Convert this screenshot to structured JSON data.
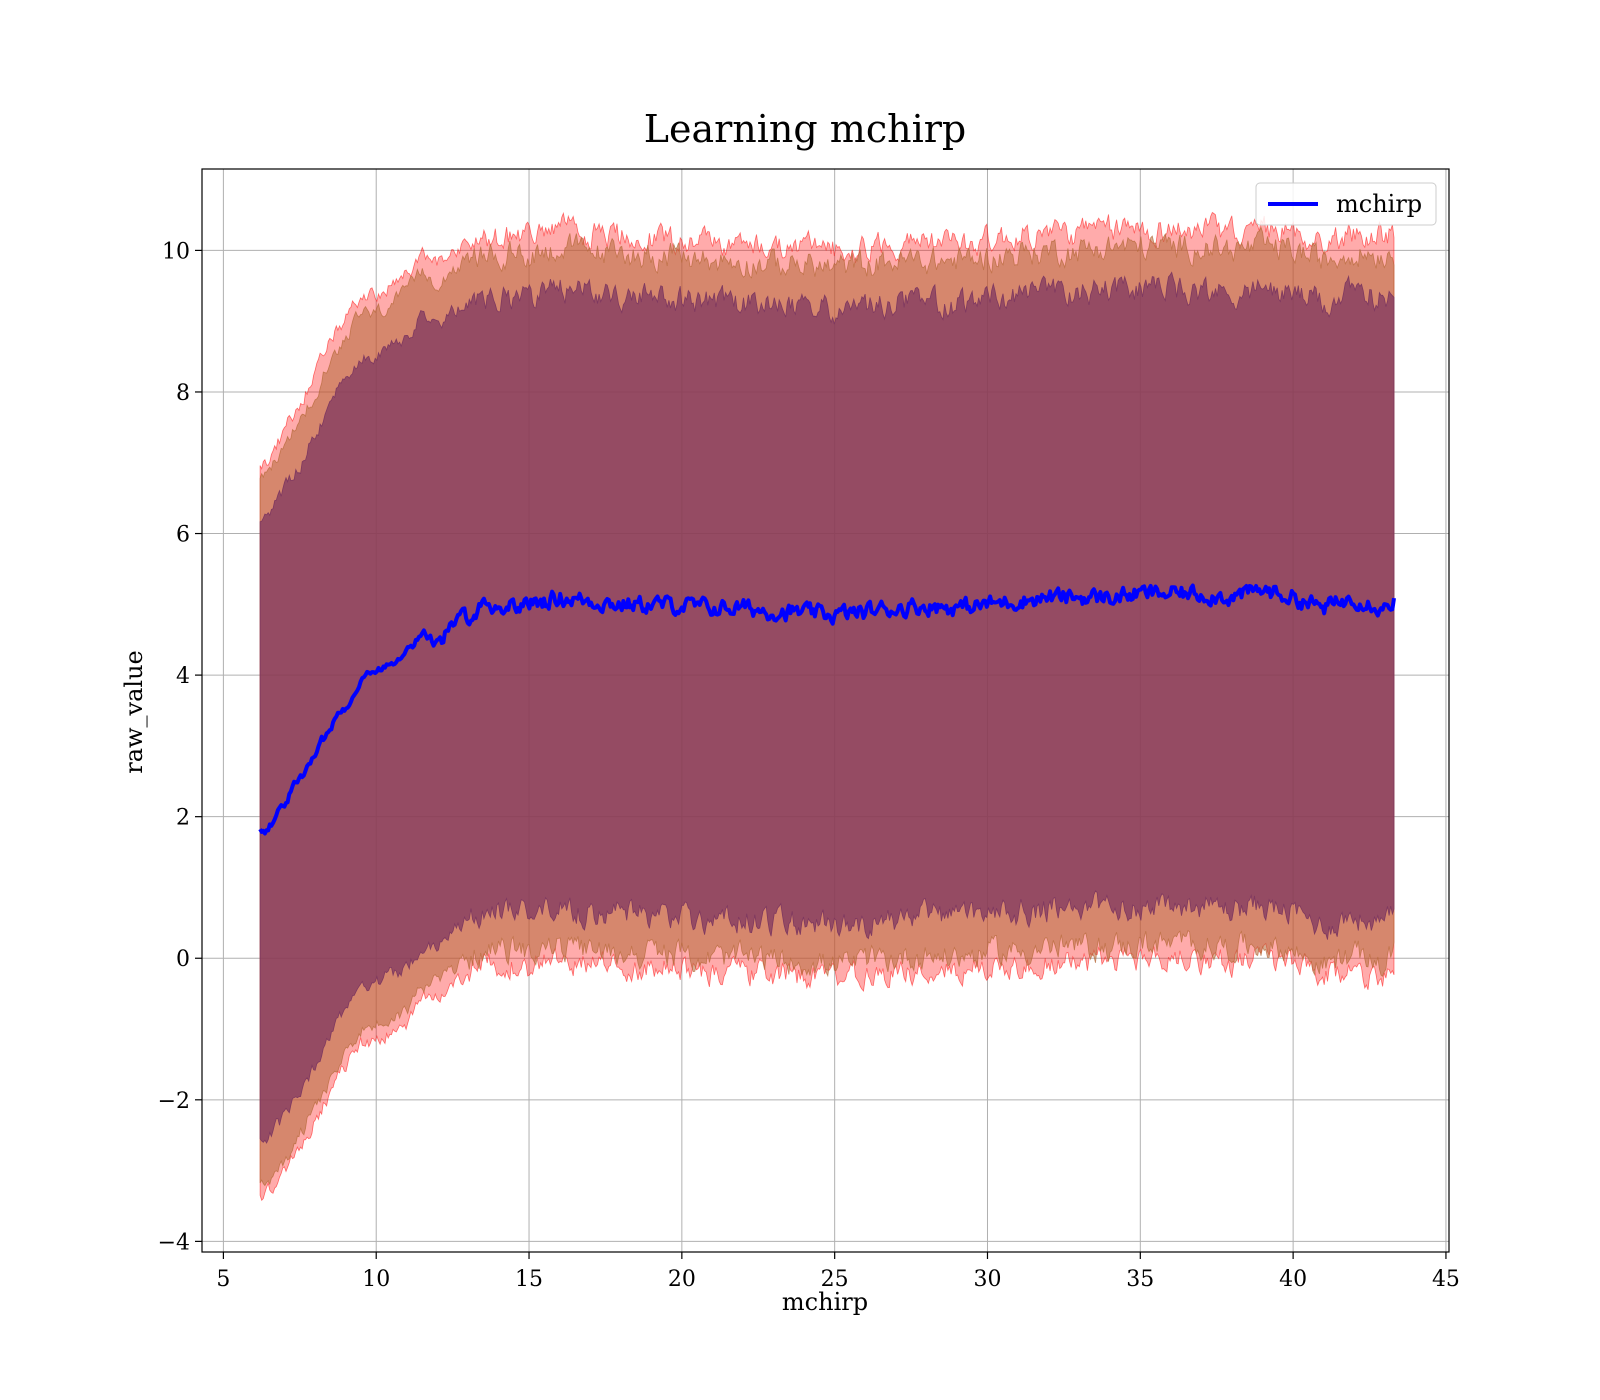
{
  "chart_data": {
    "type": "line",
    "title": "Learning mchirp",
    "xlabel": "mchirp",
    "ylabel": "raw_value",
    "xlim": [
      4.3,
      45.1
    ],
    "ylim": [
      -4.15,
      11.15
    ],
    "xticks": [
      5,
      10,
      15,
      20,
      25,
      30,
      35,
      40,
      45
    ],
    "yticks": [
      -4,
      -2,
      0,
      2,
      4,
      6,
      8,
      10
    ],
    "xtick_labels": [
      "5",
      "10",
      "15",
      "20",
      "25",
      "30",
      "35",
      "40",
      "45"
    ],
    "ytick_labels": [
      "−4",
      "−2",
      "0",
      "2",
      "4",
      "6",
      "8",
      "10"
    ],
    "grid": true,
    "legend": {
      "position": "upper right",
      "entries": [
        "mchirp"
      ]
    },
    "x_range": [
      6.2,
      43.3
    ],
    "series": [
      {
        "name": "mchirp",
        "color": "#0000ff",
        "x": [
          6.2,
          6.5,
          7,
          7.5,
          8,
          8.5,
          9,
          9.5,
          10,
          10.5,
          11,
          11.5,
          12,
          12.5,
          13,
          13.5,
          14,
          14.5,
          15,
          15.5,
          16,
          17,
          18,
          19,
          20,
          21,
          22,
          23,
          24,
          25,
          26,
          27,
          28,
          29,
          30,
          31,
          32,
          33,
          34,
          35,
          36,
          37,
          38,
          39,
          40,
          41,
          42,
          43,
          43.3
        ],
        "mean": [
          1.78,
          1.85,
          2.2,
          2.55,
          2.85,
          3.3,
          3.55,
          3.95,
          4.05,
          4.2,
          4.35,
          4.6,
          4.45,
          4.7,
          4.85,
          5.0,
          4.95,
          5.0,
          5.0,
          5.05,
          5.1,
          5.05,
          5.0,
          5.0,
          4.98,
          4.95,
          4.95,
          4.9,
          4.88,
          4.85,
          4.9,
          4.95,
          4.98,
          4.95,
          5.0,
          5.05,
          5.1,
          5.1,
          5.1,
          5.15,
          5.15,
          5.15,
          5.1,
          5.2,
          5.1,
          4.95,
          5.1,
          4.95,
          5.08
        ]
      }
    ],
    "bands": [
      {
        "name": "outer",
        "color": "#ff0000",
        "opacity": 0.33,
        "x": [
          6.2,
          6.5,
          7,
          7.5,
          8,
          8.5,
          9,
          9.5,
          10,
          10.5,
          11,
          11.5,
          12,
          12.5,
          13,
          13.5,
          14,
          14.5,
          15,
          15.5,
          16,
          17,
          18,
          19,
          20,
          21,
          22,
          23,
          24,
          25,
          26,
          27,
          28,
          29,
          30,
          31,
          32,
          33,
          34,
          35,
          36,
          37,
          38,
          39,
          40,
          41,
          42,
          43,
          43.3
        ],
        "upper": [
          6.92,
          7.05,
          7.45,
          7.85,
          8.25,
          8.7,
          9.05,
          9.35,
          9.35,
          9.5,
          9.65,
          9.95,
          9.8,
          10.0,
          10.1,
          10.2,
          10.15,
          10.2,
          10.2,
          10.25,
          10.3,
          10.25,
          10.2,
          10.2,
          10.15,
          10.1,
          10.1,
          10.05,
          10.05,
          10.0,
          10.05,
          10.1,
          10.1,
          10.1,
          10.15,
          10.2,
          10.25,
          10.25,
          10.3,
          10.3,
          10.3,
          10.3,
          10.25,
          10.3,
          10.25,
          10.1,
          10.25,
          10.2,
          10.22
        ],
        "lower": [
          -3.35,
          -3.3,
          -3.05,
          -2.7,
          -2.3,
          -1.9,
          -1.5,
          -1.2,
          -1.15,
          -1.05,
          -0.95,
          -0.6,
          -0.55,
          -0.35,
          -0.2,
          -0.1,
          -0.1,
          -0.08,
          -0.1,
          -0.05,
          -0.05,
          -0.1,
          -0.12,
          -0.12,
          -0.15,
          -0.2,
          -0.2,
          -0.22,
          -0.25,
          -0.3,
          -0.25,
          -0.2,
          -0.15,
          -0.18,
          -0.12,
          -0.1,
          -0.05,
          -0.05,
          -0.05,
          0.0,
          0.0,
          0.0,
          -0.05,
          0.0,
          -0.1,
          -0.3,
          -0.15,
          -0.3,
          -0.1
        ]
      },
      {
        "name": "middle",
        "color": "#b56a3a",
        "opacity": 0.55,
        "x": [
          6.2,
          6.5,
          7,
          7.5,
          8,
          8.5,
          9,
          9.5,
          10,
          10.5,
          11,
          11.5,
          12,
          12.5,
          13,
          13.5,
          14,
          14.5,
          15,
          15.5,
          16,
          17,
          18,
          19,
          20,
          21,
          22,
          23,
          24,
          25,
          26,
          27,
          28,
          29,
          30,
          31,
          32,
          33,
          34,
          35,
          36,
          37,
          38,
          39,
          40,
          41,
          42,
          43,
          43.3
        ],
        "upper": [
          6.75,
          6.85,
          7.2,
          7.6,
          8.0,
          8.45,
          8.8,
          9.1,
          9.1,
          9.25,
          9.4,
          9.7,
          9.55,
          9.75,
          9.85,
          9.95,
          9.9,
          9.95,
          9.95,
          10.0,
          10.05,
          10.0,
          9.95,
          9.95,
          9.9,
          9.85,
          9.85,
          9.8,
          9.8,
          9.75,
          9.8,
          9.85,
          9.85,
          9.85,
          9.9,
          9.95,
          10.0,
          10.0,
          10.05,
          10.05,
          10.05,
          10.05,
          10.0,
          10.05,
          10.0,
          9.85,
          10.0,
          9.95,
          9.98
        ],
        "lower": [
          -3.2,
          -3.1,
          -2.85,
          -2.5,
          -2.1,
          -1.7,
          -1.3,
          -1.0,
          -0.95,
          -0.85,
          -0.75,
          -0.35,
          -0.35,
          -0.15,
          0.0,
          0.1,
          0.1,
          0.12,
          0.1,
          0.15,
          0.15,
          0.1,
          0.08,
          0.08,
          0.05,
          0.0,
          0.0,
          -0.02,
          -0.05,
          -0.1,
          -0.05,
          0.0,
          0.05,
          0.02,
          0.08,
          0.1,
          0.15,
          0.15,
          0.15,
          0.2,
          0.2,
          0.2,
          0.15,
          0.2,
          0.1,
          -0.1,
          0.05,
          -0.1,
          0.05
        ]
      },
      {
        "name": "inner",
        "color": "#7b3560",
        "opacity": 0.72,
        "x": [
          6.2,
          6.5,
          7,
          7.5,
          8,
          8.5,
          9,
          9.5,
          10,
          10.5,
          11,
          11.5,
          12,
          12.5,
          13,
          13.5,
          14,
          14.5,
          15,
          15.5,
          16,
          17,
          18,
          19,
          20,
          21,
          22,
          23,
          24,
          25,
          26,
          27,
          28,
          29,
          30,
          31,
          32,
          33,
          34,
          35,
          36,
          37,
          38,
          39,
          40,
          41,
          42,
          43,
          43.3
        ],
        "upper": [
          6.15,
          6.25,
          6.6,
          6.95,
          7.4,
          7.85,
          8.2,
          8.5,
          8.5,
          8.65,
          8.8,
          9.1,
          8.95,
          9.15,
          9.25,
          9.35,
          9.3,
          9.35,
          9.35,
          9.4,
          9.45,
          9.4,
          9.35,
          9.35,
          9.3,
          9.25,
          9.25,
          9.2,
          9.2,
          9.15,
          9.2,
          9.25,
          9.25,
          9.25,
          9.3,
          9.35,
          9.4,
          9.4,
          9.45,
          9.45,
          9.45,
          9.45,
          9.4,
          9.45,
          9.4,
          9.25,
          9.4,
          9.35,
          9.4
        ],
        "lower": [
          -2.6,
          -2.5,
          -2.25,
          -1.9,
          -1.5,
          -1.1,
          -0.7,
          -0.4,
          -0.35,
          -0.25,
          -0.15,
          0.2,
          0.2,
          0.4,
          0.55,
          0.65,
          0.65,
          0.7,
          0.65,
          0.7,
          0.7,
          0.65,
          0.62,
          0.6,
          0.6,
          0.55,
          0.55,
          0.52,
          0.5,
          0.45,
          0.5,
          0.55,
          0.6,
          0.57,
          0.62,
          0.65,
          0.7,
          0.7,
          0.7,
          0.75,
          0.75,
          0.75,
          0.7,
          0.75,
          0.65,
          0.45,
          0.6,
          0.45,
          0.6
        ]
      }
    ]
  }
}
